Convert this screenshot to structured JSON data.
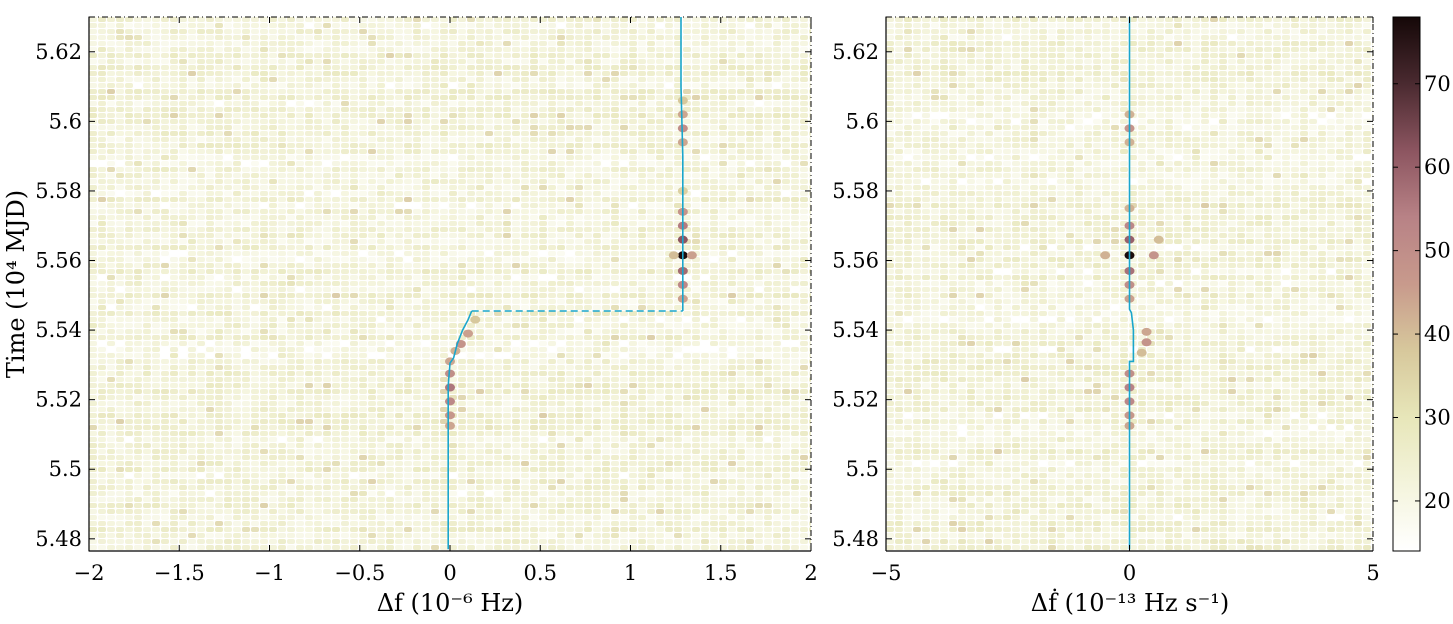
{
  "chart_data": [
    {
      "type": "heatmap",
      "title": "",
      "xlabel": "Δf (10⁻⁶ Hz)",
      "ylabel": "Time (10⁴ MJD)",
      "xlim": [
        -2,
        2
      ],
      "ylim": [
        5.4765,
        5.63
      ],
      "xticks": [
        -2,
        -1.5,
        -1,
        -0.5,
        0,
        0.5,
        1,
        1.5,
        2
      ],
      "xtick_labels": [
        "−2",
        "−1.5",
        "−1",
        "−0.5",
        "0",
        "0.5",
        "1",
        "1.5",
        "2"
      ],
      "yticks": [
        5.48,
        5.5,
        5.52,
        5.54,
        5.56,
        5.58,
        5.6,
        5.62
      ],
      "ytick_labels": [
        "5.48",
        "5.5",
        "5.52",
        "5.54",
        "5.56",
        "5.58",
        "5.6",
        "5.62"
      ],
      "track": {
        "color": "#1aa6cc",
        "points": [
          [
            -0.01,
            5.477
          ],
          [
            -0.01,
            5.524
          ],
          [
            0.0,
            5.5305
          ],
          [
            0.02,
            5.532
          ],
          [
            0.04,
            5.536
          ],
          [
            0.07,
            5.54
          ],
          [
            0.1,
            5.543
          ],
          [
            0.12,
            5.5455
          ]
        ],
        "dashed": [
          [
            0.12,
            5.5455
          ],
          [
            1.29,
            5.5455
          ]
        ],
        "points_after": [
          [
            1.29,
            5.5455
          ],
          [
            1.29,
            5.556
          ],
          [
            1.29,
            5.57
          ],
          [
            1.29,
            5.59
          ],
          [
            1.28,
            5.61
          ],
          [
            1.28,
            5.63
          ]
        ]
      },
      "hotspots": [
        {
          "x": 1.29,
          "y": 5.5615,
          "value": 77
        },
        {
          "x": 1.29,
          "y": 5.566,
          "value": 62
        },
        {
          "x": 1.29,
          "y": 5.557,
          "value": 58
        },
        {
          "x": 1.29,
          "y": 5.57,
          "value": 55
        },
        {
          "x": 1.29,
          "y": 5.553,
          "value": 52
        },
        {
          "x": 1.29,
          "y": 5.574,
          "value": 48
        },
        {
          "x": 1.29,
          "y": 5.549,
          "value": 45
        },
        {
          "x": 1.29,
          "y": 5.598,
          "value": 50
        },
        {
          "x": 1.29,
          "y": 5.594,
          "value": 44
        },
        {
          "x": 1.29,
          "y": 5.602,
          "value": 44
        },
        {
          "x": 1.29,
          "y": 5.606,
          "value": 38
        },
        {
          "x": 1.29,
          "y": 5.58,
          "value": 36
        },
        {
          "x": 1.34,
          "y": 5.5615,
          "value": 45
        },
        {
          "x": 1.24,
          "y": 5.5615,
          "value": 40
        },
        {
          "x": 0.0,
          "y": 5.5235,
          "value": 56
        },
        {
          "x": 0.0,
          "y": 5.5195,
          "value": 52
        },
        {
          "x": 0.0,
          "y": 5.5275,
          "value": 50
        },
        {
          "x": 0.0,
          "y": 5.5155,
          "value": 47
        },
        {
          "x": 0.0,
          "y": 5.5125,
          "value": 44
        },
        {
          "x": 0.0,
          "y": 5.531,
          "value": 44
        },
        {
          "x": 0.06,
          "y": 5.536,
          "value": 48
        },
        {
          "x": 0.1,
          "y": 5.539,
          "value": 45
        },
        {
          "x": 0.03,
          "y": 5.534,
          "value": 42
        },
        {
          "x": 0.14,
          "y": 5.543,
          "value": 38
        }
      ]
    },
    {
      "type": "heatmap",
      "title": "",
      "xlabel": "Δḟ (10⁻¹³ Hz s⁻¹)",
      "ylabel": "",
      "xlim": [
        -5,
        5
      ],
      "ylim": [
        5.4765,
        5.63
      ],
      "xticks": [
        -5,
        0,
        5
      ],
      "xtick_labels": [
        "−5",
        "0",
        "5"
      ],
      "yticks": [
        5.48,
        5.5,
        5.52,
        5.54,
        5.56,
        5.58,
        5.6,
        5.62
      ],
      "ytick_labels": [
        "5.48",
        "5.5",
        "5.52",
        "5.54",
        "5.56",
        "5.58",
        "5.6",
        "5.62"
      ],
      "track": {
        "color": "#1aa6cc",
        "points": [
          [
            0.0,
            5.477
          ],
          [
            0.0,
            5.531
          ],
          [
            0.08,
            5.531
          ],
          [
            0.08,
            5.54
          ],
          [
            0.04,
            5.545
          ],
          [
            0.0,
            5.546
          ],
          [
            0.0,
            5.63
          ]
        ]
      },
      "hotspots": [
        {
          "x": 0.0,
          "y": 5.5615,
          "value": 77
        },
        {
          "x": 0.0,
          "y": 5.566,
          "value": 60
        },
        {
          "x": 0.0,
          "y": 5.557,
          "value": 57
        },
        {
          "x": 0.0,
          "y": 5.57,
          "value": 52
        },
        {
          "x": 0.0,
          "y": 5.553,
          "value": 50
        },
        {
          "x": 0.0,
          "y": 5.549,
          "value": 45
        },
        {
          "x": 0.0,
          "y": 5.575,
          "value": 42
        },
        {
          "x": 0.0,
          "y": 5.598,
          "value": 48
        },
        {
          "x": 0.0,
          "y": 5.594,
          "value": 42
        },
        {
          "x": 0.0,
          "y": 5.602,
          "value": 42
        },
        {
          "x": 0.5,
          "y": 5.5615,
          "value": 48
        },
        {
          "x": -0.5,
          "y": 5.5615,
          "value": 42
        },
        {
          "x": 0.6,
          "y": 5.566,
          "value": 40
        },
        {
          "x": 0.0,
          "y": 5.5235,
          "value": 54
        },
        {
          "x": 0.0,
          "y": 5.5195,
          "value": 52
        },
        {
          "x": 0.0,
          "y": 5.5275,
          "value": 50
        },
        {
          "x": 0.0,
          "y": 5.5155,
          "value": 47
        },
        {
          "x": 0.0,
          "y": 5.5125,
          "value": 44
        },
        {
          "x": 0.35,
          "y": 5.5365,
          "value": 48
        },
        {
          "x": 0.35,
          "y": 5.5395,
          "value": 44
        },
        {
          "x": 0.25,
          "y": 5.5335,
          "value": 40
        }
      ]
    }
  ],
  "colorbar": {
    "min": 14,
    "max": 78,
    "ticks": [
      20,
      30,
      40,
      50,
      60,
      70
    ],
    "tick_labels": [
      "20",
      "30",
      "40",
      "50",
      "60",
      "70"
    ],
    "colors": [
      "#ffffff",
      "#f4f4dc",
      "#e7e6b9",
      "#d7c89c",
      "#c89a8c",
      "#b88286",
      "#8c5560",
      "#4a2a30",
      "#150808"
    ]
  }
}
